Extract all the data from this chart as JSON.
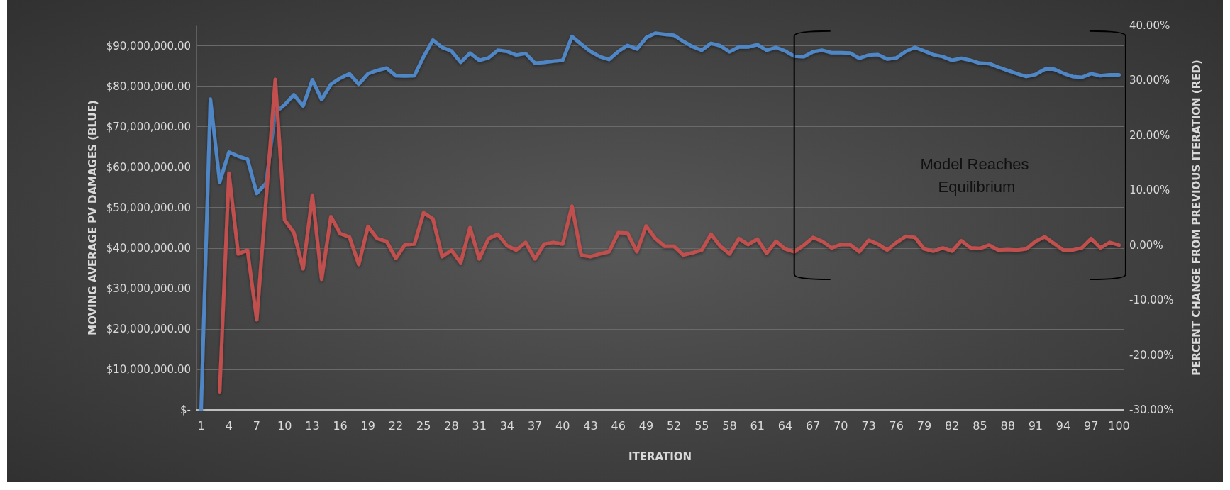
{
  "chart_data": {
    "type": "line",
    "xlabel": "ITERATION",
    "ylabel": "MOVING AVERAGE PV DAMAGES (BLUE)",
    "y2label": "PERCENT CHANGE FROM PREVIOUS ITERATION (RED)",
    "categories": [
      "1",
      null,
      null,
      "4",
      null,
      null,
      "7",
      null,
      null,
      "10",
      null,
      null,
      "13",
      null,
      null,
      "16",
      null,
      null,
      "19",
      null,
      null,
      "22",
      null,
      null,
      "25",
      null,
      null,
      "28",
      null,
      null,
      "31",
      null,
      null,
      "34",
      null,
      null,
      "37",
      null,
      null,
      "40",
      null,
      null,
      "43",
      null,
      null,
      "46",
      null,
      null,
      "49",
      null,
      null,
      "52",
      null,
      null,
      "55",
      null,
      null,
      "58",
      null,
      null,
      "61",
      null,
      null,
      "64",
      null,
      null,
      "67",
      null,
      null,
      "70",
      null,
      null,
      "73",
      null,
      null,
      "76",
      null,
      null,
      "79",
      null,
      null,
      "82",
      null,
      null,
      "85",
      null,
      null,
      "88",
      null,
      null,
      "91",
      null,
      null,
      "94",
      null,
      null,
      "97",
      null,
      null,
      "100"
    ],
    "series": [
      {
        "color": "#4f86c6",
        "values": [
          0,
          76800000,
          56300000,
          63700000,
          62700000,
          62000000,
          53500000,
          56000000,
          73500000,
          75400000,
          77900000,
          75100000,
          81600000,
          76700000,
          80500000,
          82000000,
          83100000,
          80500000,
          83100000,
          83900000,
          84500000,
          82600000,
          82500000,
          82600000,
          87300000,
          91400000,
          89600000,
          88700000,
          85900000,
          88200000,
          86400000,
          87000000,
          88900000,
          88600000,
          87700000,
          88100000,
          85700000,
          85900000,
          86200000,
          86400000,
          92300000,
          90400000,
          88600000,
          87300000,
          86600000,
          88600000,
          90100000,
          89200000,
          92000000,
          93100000,
          92800000,
          92600000,
          91100000,
          89800000,
          88900000,
          90600000,
          90000000,
          88500000,
          89700000,
          89700000,
          90300000,
          88900000,
          89600000,
          88700000,
          87400000,
          87300000,
          88500000,
          88900000,
          88300000,
          88300000,
          88200000,
          86900000,
          87700000,
          87800000,
          86700000,
          87000000,
          88600000,
          89600000,
          88700000,
          87800000,
          87300000,
          86400000,
          86900000,
          86400000,
          85700000,
          85600000,
          84700000,
          83900000,
          83100000,
          82400000,
          82900000,
          84200000,
          84200000,
          83200000,
          82400000,
          82200000,
          83100000,
          82600000,
          82800000,
          82800000
        ]
      },
      {
        "color": "#c0504d",
        "axis": "y2",
        "values": [
          null,
          null,
          -26.7,
          13.1,
          -1.6,
          -0.9,
          -13.6,
          8.3,
          30.2,
          4.6,
          2.3,
          -4.3,
          9.1,
          -6.2,
          5.2,
          2.1,
          1.5,
          -3.5,
          3.4,
          1.2,
          0.7,
          -2.4,
          0.1,
          0.2,
          5.9,
          4.8,
          -2.1,
          -0.9,
          -3.2,
          3.2,
          -2.5,
          1.2,
          2.0,
          -0.1,
          -0.9,
          0.5,
          -2.5,
          0.2,
          0.5,
          0.2,
          7.1,
          -1.8,
          -2.1,
          -1.6,
          -1.2,
          2.3,
          2.2,
          -1.2,
          3.5,
          1.2,
          -0.2,
          -0.2,
          -1.8,
          -1.4,
          -0.9,
          2.0,
          -0.2,
          -1.6,
          1.2,
          0.1,
          1.1,
          -1.5,
          0.7,
          -0.7,
          -1.2,
          0,
          1.4,
          0.7,
          -0.5,
          0.1,
          0.1,
          -1.2,
          0.9,
          0.2,
          -0.9,
          0.5,
          1.6,
          1.4,
          -0.7,
          -1.1,
          -0.5,
          -1.1,
          0.8,
          -0.5,
          -0.6,
          0,
          -0.9,
          -0.8,
          -0.9,
          -0.7,
          0.7,
          1.5,
          0.3,
          -0.9,
          -0.9,
          -0.5,
          1.2,
          -0.5,
          0.5,
          0
        ]
      }
    ],
    "ylim": [
      0,
      95000000
    ],
    "yticks": [
      {
        "value": 0,
        "label": "$-"
      },
      {
        "value": 10000000,
        "label": "$10,000,000.00"
      },
      {
        "value": 20000000,
        "label": "$20,000,000.00"
      },
      {
        "value": 30000000,
        "label": "$30,000,000.00"
      },
      {
        "value": 40000000,
        "label": "$40,000,000.00"
      },
      {
        "value": 50000000,
        "label": "$50,000,000.00"
      },
      {
        "value": 60000000,
        "label": "$60,000,000.00"
      },
      {
        "value": 70000000,
        "label": "$70,000,000.00"
      },
      {
        "value": 80000000,
        "label": "$80,000,000.00"
      },
      {
        "value": 90000000,
        "label": "$90,000,000.00"
      }
    ],
    "y2lim": [
      -30,
      40
    ],
    "y2ticks": [
      {
        "value": -30,
        "label": "-30.00%"
      },
      {
        "value": -20,
        "label": "-20.00%"
      },
      {
        "value": -10,
        "label": "-10.00%"
      },
      {
        "value": 0,
        "label": "0.00%"
      },
      {
        "value": 10,
        "label": "10.00%"
      },
      {
        "value": 20,
        "label": "20.00%"
      },
      {
        "value": 30,
        "label": "30.00%"
      },
      {
        "value": 40,
        "label": "40.00%"
      }
    ],
    "annotations": [
      "Model Reaches Equilibrium"
    ],
    "grid": "y",
    "marker": "none",
    "line_style": "solid"
  }
}
